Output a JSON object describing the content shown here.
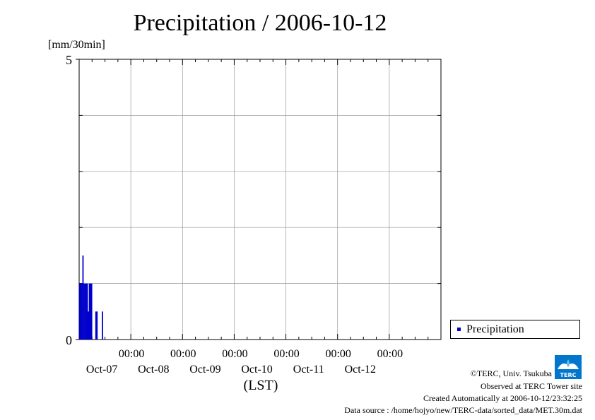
{
  "chart_data": {
    "type": "bar",
    "title": "Precipitation / 2006-10-12",
    "ylabel": "[mm/30min]",
    "xlabel": "(LST)",
    "ylim": [
      0,
      5
    ],
    "y_tick_labels": [
      "0",
      "5"
    ],
    "x_tick_labels": [
      {
        "time": "00:00",
        "date": "Oct-07"
      },
      {
        "time": "00:00",
        "date": "Oct-08"
      },
      {
        "time": "00:00",
        "date": "Oct-09"
      },
      {
        "time": "00:00",
        "date": "Oct-10"
      },
      {
        "time": "00:00",
        "date": "Oct-11"
      },
      {
        "time": "00:00",
        "date": "Oct-12"
      }
    ],
    "grid": true,
    "legend_position": "right",
    "colors": {
      "series": "#0000cc",
      "grid": "#999999"
    },
    "series": [
      {
        "name": "Precipitation",
        "x": [
          "2006-10-06 00:00",
          "2006-10-06 00:30",
          "2006-10-06 01:00",
          "2006-10-06 01:30",
          "2006-10-06 02:00",
          "2006-10-06 02:30",
          "2006-10-06 03:00",
          "2006-10-06 03:30",
          "2006-10-06 04:00",
          "2006-10-06 04:30",
          "2006-10-06 05:00",
          "2006-10-06 05:30",
          "2006-10-06 06:00",
          "2006-10-06 06:30",
          "2006-10-06 07:00",
          "2006-10-06 07:30",
          "2006-10-06 08:00",
          "2006-10-06 08:30",
          "2006-10-06 09:00",
          "2006-10-06 09:30",
          "2006-10-06 10:00",
          "2006-10-06 10:30"
        ],
        "values": [
          1.0,
          1.0,
          1.0,
          1.5,
          1.0,
          1.0,
          1.0,
          1.0,
          0.5,
          1.0,
          1.0,
          1.0,
          0,
          0,
          0,
          0.5,
          0.5,
          0,
          0,
          0,
          0,
          0.5
        ]
      }
    ]
  },
  "legend": {
    "label": "Precipitation"
  },
  "credits": {
    "copyright": "©TERC, Univ. Tsukuba",
    "observed": "Observed at TERC Tower site",
    "created": "Created Automatically at 2006-10-12/23:32:25",
    "source": "Data source : /home/hojyo/new/TERC-data/sorted_data/MET.30m.dat",
    "logo_text": "TERC"
  }
}
